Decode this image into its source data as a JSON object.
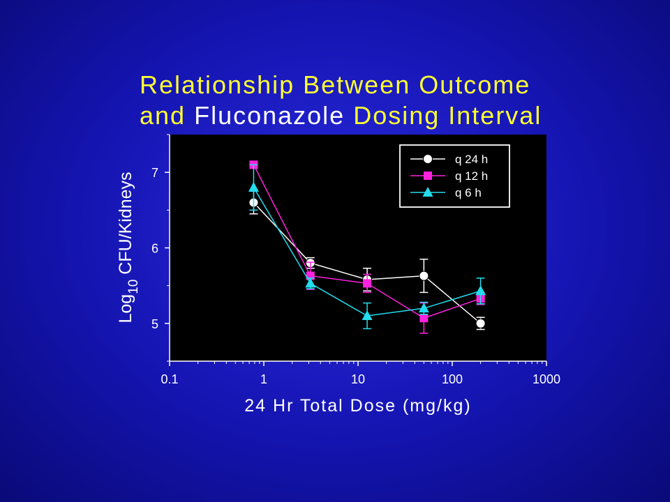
{
  "title": {
    "line1": "Relationship Between Outcome",
    "line2_a": "and ",
    "line2_b": "Fluconazole",
    "line2_c": " Dosing Interval"
  },
  "colors": {
    "background": "#1414b0",
    "plot_background": "#000000",
    "title": "#ffff33",
    "title_highlight": "#ffffff",
    "axis": "#ffffff"
  },
  "chart_data": {
    "type": "line",
    "title": "Relationship Between Outcome and Fluconazole Dosing Interval",
    "xlabel": "24 Hr Total Dose (mg/kg)",
    "ylabel_main": "Log",
    "ylabel_sub": "10",
    "ylabel_rest": " CFU/Kidneys",
    "x_scale": "log",
    "xlim": [
      0.1,
      1000
    ],
    "ylim": [
      4.5,
      7.5
    ],
    "x_ticks": [
      0.1,
      1,
      10,
      100,
      1000
    ],
    "x_tick_labels": [
      "0.1",
      "1",
      "10",
      "100",
      "1000"
    ],
    "y_ticks": [
      5,
      6,
      7
    ],
    "y_tick_labels": [
      "5",
      "6",
      "7"
    ],
    "grid": false,
    "legend_position": "top-right",
    "series": [
      {
        "name": "q 24 h",
        "color": "#ffffff",
        "marker": "circle",
        "x": [
          0.78,
          3.125,
          12.5,
          50,
          200
        ],
        "y": [
          6.6,
          5.8,
          5.58,
          5.63,
          5.0
        ],
        "err": [
          0.15,
          0.07,
          0.15,
          0.22,
          0.08
        ]
      },
      {
        "name": "q 12 h",
        "color": "#ff22dd",
        "marker": "square",
        "x": [
          0.78,
          3.125,
          12.5,
          50,
          200
        ],
        "y": [
          7.1,
          5.63,
          5.53,
          5.07,
          5.33
        ],
        "err": [
          0.04,
          0.18,
          0.12,
          0.2,
          0.08
        ]
      },
      {
        "name": "q 6 h",
        "color": "#22ddee",
        "marker": "triangle",
        "x": [
          0.78,
          3.125,
          12.5,
          50,
          200
        ],
        "y": [
          6.8,
          5.53,
          5.1,
          5.2,
          5.43
        ],
        "err": [
          0.3,
          0.07,
          0.17,
          0.08,
          0.17
        ]
      }
    ]
  }
}
